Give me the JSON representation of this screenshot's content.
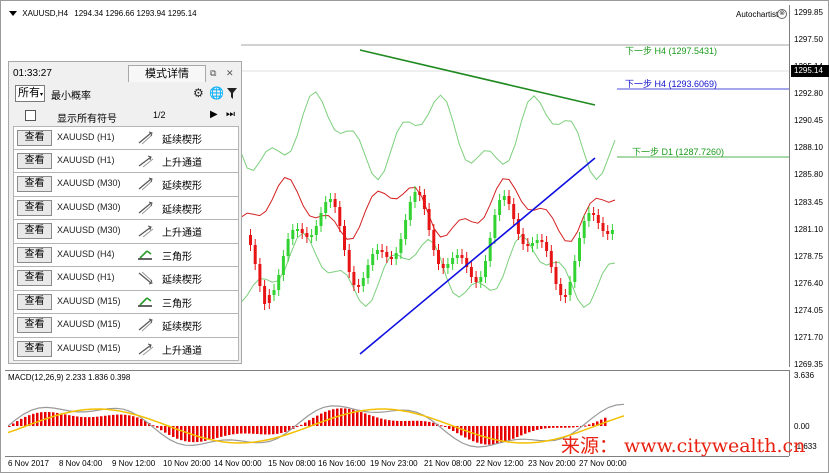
{
  "window": {
    "symbol": "XAUUSD,H4",
    "ohlc": "1294.34 1296.66 1293.94 1295.14",
    "autochartist": "Autochartist",
    "autochartist_close": "⊗"
  },
  "price_axis": {
    "ticks": [
      "1299.85",
      "1297.50",
      "1295.14",
      "1292.80",
      "1290.45",
      "1288.10",
      "1285.80",
      "1283.45",
      "1281.10",
      "1278.75",
      "1276.40",
      "1274.05",
      "1271.70",
      "1269.35"
    ],
    "current_price": "1295.14"
  },
  "time_axis": {
    "ticks": [
      "6 Nov 2017",
      "8 Nov 04:00",
      "9 Nov 12:00",
      "10 Nov 20:00",
      "14 Nov 00:00",
      "15 Nov 08:00",
      "16 Nov 16:00",
      "19 Nov 23:00",
      "21 Nov 08:00",
      "22 Nov 12:00",
      "23 Nov 20:00",
      "27 Nov 00:00"
    ]
  },
  "next_targets": [
    {
      "label": "下一步 H4 (1297.5431)",
      "color": "#1a9a1a"
    },
    {
      "label": "下一步 H4 (1293.6069)",
      "color": "#1111cc"
    },
    {
      "label": "下一步 D1 (1287.7260)",
      "color": "#1a9a1a"
    }
  ],
  "macd": {
    "label": "MACD(12,26,9) 2.233 1.836 0.398",
    "axis": [
      "3.636",
      "0.00",
      "-1.633"
    ]
  },
  "watermark": "来源：  www.citywealth.cn",
  "panel": {
    "time": "01:33:27",
    "title": "模式详情",
    "restore_icon": "⧉",
    "close_icon": "✕",
    "filter_all": "所有",
    "min_probability": "最小概率",
    "show_all_symbols": "显示所有符号",
    "page": "1/2",
    "rows": [
      {
        "button": "查看",
        "symbol": "XAUUSD (H1)",
        "pattern": "延续楔形",
        "icon": "wedge-up-icon"
      },
      {
        "button": "查看",
        "symbol": "XAUUSD (H1)",
        "pattern": "上升通道",
        "icon": "channel-up-icon"
      },
      {
        "button": "查看",
        "symbol": "XAUUSD (M30)",
        "pattern": "延续楔形",
        "icon": "wedge-up-icon"
      },
      {
        "button": "查看",
        "symbol": "XAUUSD (M30)",
        "pattern": "延续楔形",
        "icon": "wedge-up-icon"
      },
      {
        "button": "查看",
        "symbol": "XAUUSD (M30)",
        "pattern": "上升通道",
        "icon": "channel-up-icon"
      },
      {
        "button": "查看",
        "symbol": "XAUUSD (H4)",
        "pattern": "三角形",
        "icon": "triangle-icon"
      },
      {
        "button": "查看",
        "symbol": "XAUUSD (H1)",
        "pattern": "延续楔形",
        "icon": "wedge-down-icon"
      },
      {
        "button": "查看",
        "symbol": "XAUUSD (M15)",
        "pattern": "三角形",
        "icon": "triangle-icon"
      },
      {
        "button": "查看",
        "symbol": "XAUUSD (M15)",
        "pattern": "延续楔形",
        "icon": "wedge-up-icon"
      },
      {
        "button": "查看",
        "symbol": "XAUUSD (M15)",
        "pattern": "上升通道",
        "icon": "channel-up-icon"
      }
    ]
  },
  "colors": {
    "bull": "#32d232",
    "bear": "#e61414",
    "ma": "#d42020",
    "band": "#7ccf7c",
    "resistance": "#1f8a1f",
    "support": "#1010e0",
    "macd_hist": "#e60000",
    "macd_line": "#9a9a9a",
    "signal_line": "#f2c000"
  }
}
